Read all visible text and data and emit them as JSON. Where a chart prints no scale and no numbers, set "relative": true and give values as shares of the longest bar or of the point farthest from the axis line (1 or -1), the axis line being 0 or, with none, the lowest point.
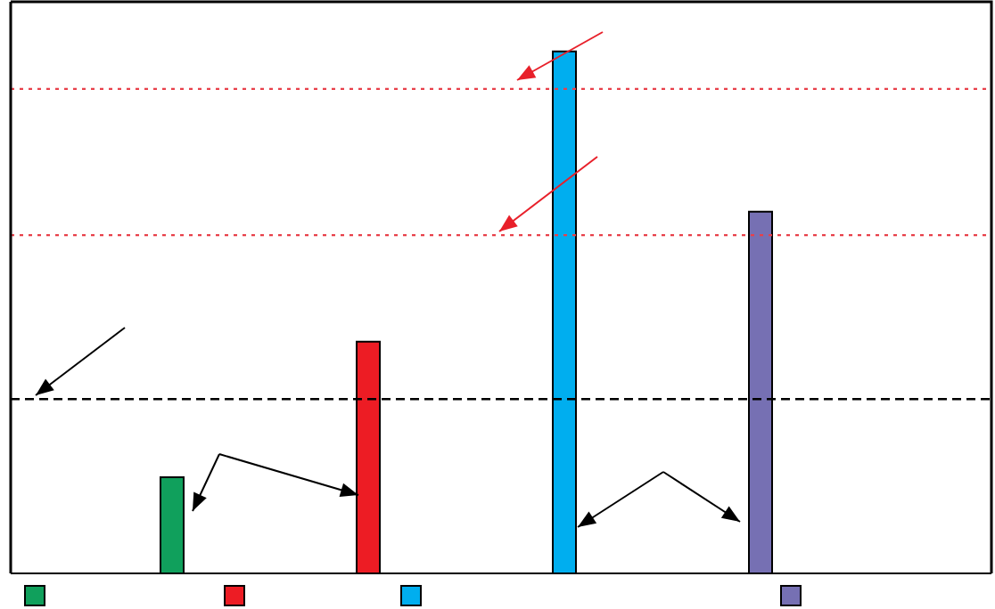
{
  "chart_data": {
    "type": "bar",
    "relative": true,
    "categories": [
      null,
      null,
      null,
      null
    ],
    "values": [
      0.184,
      0.444,
      1,
      0.693
    ],
    "colors": [
      "#10a05c",
      "#ed1c24",
      "#00aeef",
      "#7670b3"
    ],
    "ref_lines": [
      {
        "axis": "y",
        "value": 0.928,
        "color": "#e8404a",
        "line_style": "dotted"
      },
      {
        "axis": "y",
        "value": 0.648,
        "color": "#e8404a",
        "line_style": "dotted"
      },
      {
        "axis": "y",
        "value": 0.334,
        "color": "#000000",
        "line_style": "dashed"
      }
    ]
  }
}
